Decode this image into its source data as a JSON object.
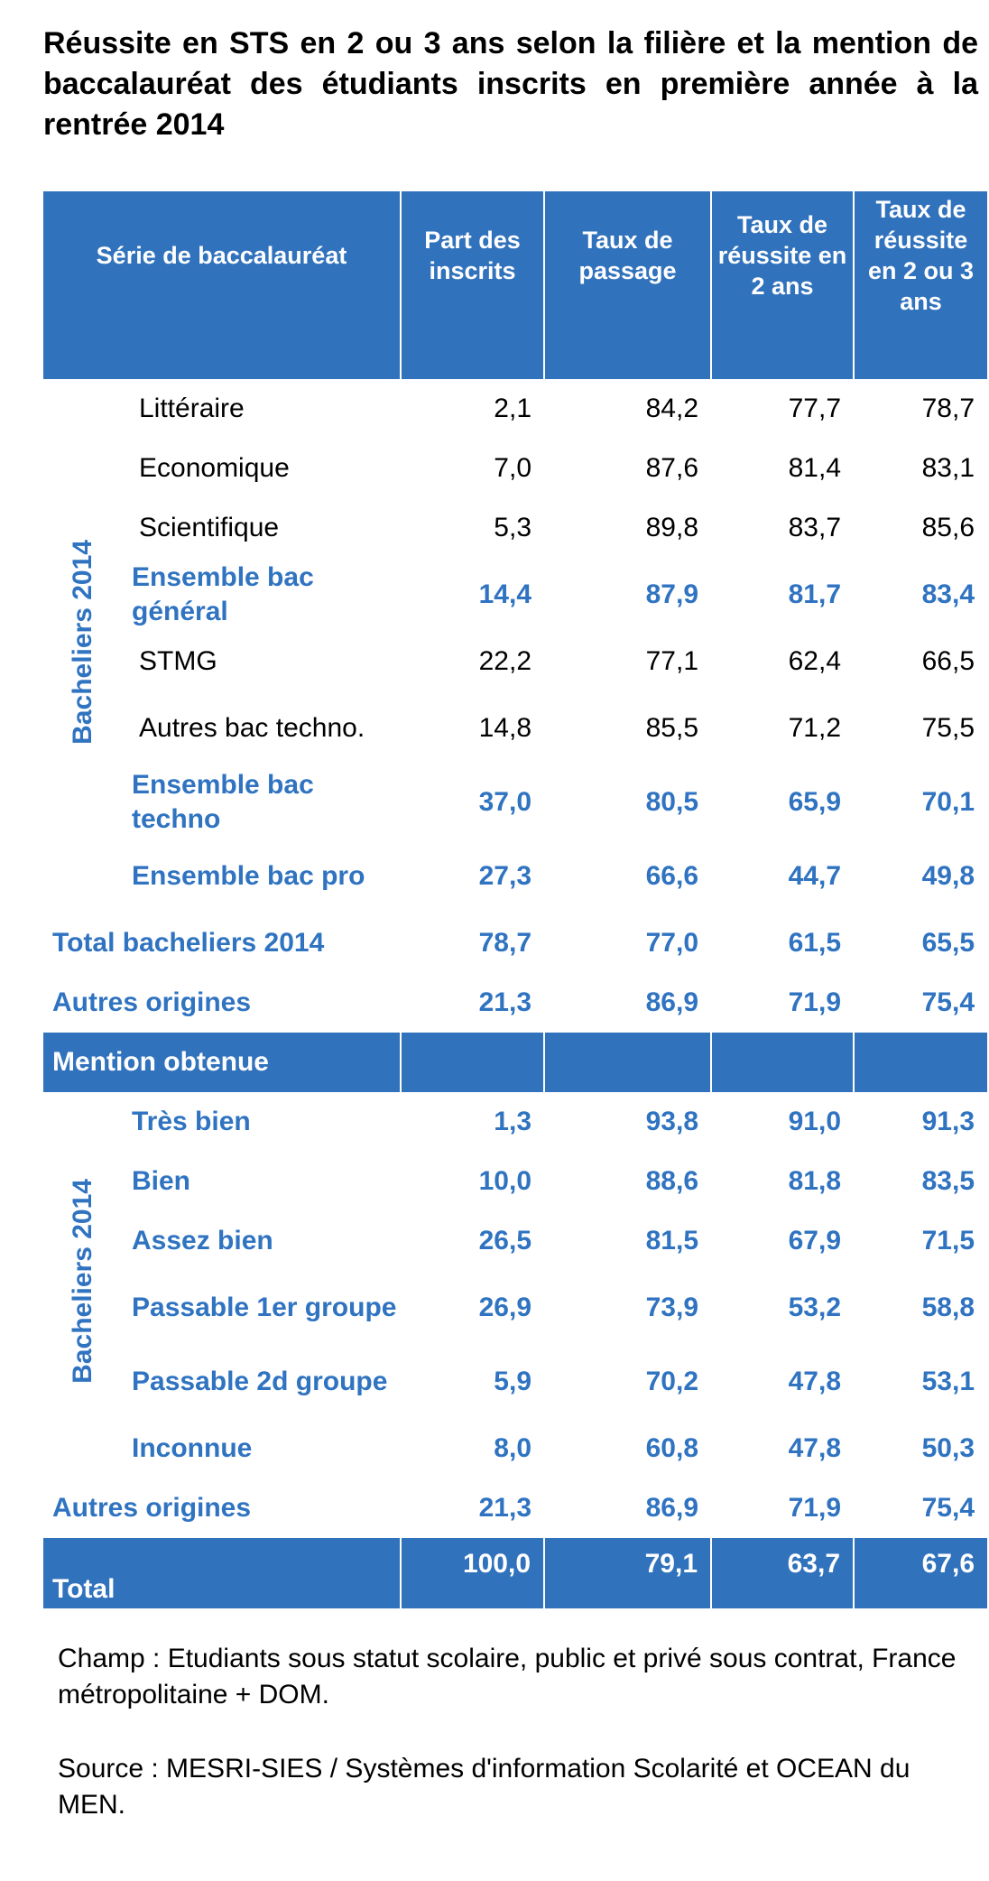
{
  "header": {
    "title": "Réussite en STS en 2 ou 3 ans selon la filière et la mention de baccalauréat des étudiants inscrits en première année à la rentrée 2014"
  },
  "table": {
    "columns": [
      "Série de baccalauréat",
      "Part des inscrits",
      "Taux de passage",
      "Taux de réussite en 2 ans",
      "Taux de réussite en 2 ou 3 ans"
    ],
    "sections": [
      {
        "group": "Bacheliers 2014",
        "rows": [
          [
            "Littéraire",
            "2,1",
            "84,2",
            "77,7",
            "78,7"
          ],
          [
            "Economique",
            "7,0",
            "87,6",
            "81,4",
            "83,1"
          ],
          [
            "Scientifique",
            "5,3",
            "89,8",
            "83,7",
            "85,6"
          ],
          [
            "Ensemble bac général",
            "14,4",
            "87,9",
            "81,7",
            "83,4"
          ],
          [
            "STMG",
            "22,2",
            "77,1",
            "62,4",
            "66,5"
          ],
          [
            "Autres bac techno.",
            "14,8",
            "85,5",
            "71,2",
            "75,5"
          ],
          [
            "Ensemble bac techno",
            "37,0",
            "80,5",
            "65,9",
            "70,1"
          ],
          [
            "Ensemble bac pro",
            "27,3",
            "66,6",
            "44,7",
            "49,8"
          ]
        ],
        "totals": [
          [
            "Total bacheliers 2014",
            "78,7",
            "77,0",
            "61,5",
            "65,5"
          ],
          [
            "Autres origines",
            "21,3",
            "86,9",
            "71,9",
            "75,4"
          ]
        ]
      },
      {
        "heading": "Mention obtenue",
        "group": "Bacheliers 2014",
        "rows": [
          [
            "Très bien",
            "1,3",
            "93,8",
            "91,0",
            "91,3"
          ],
          [
            "Bien",
            "10,0",
            "88,6",
            "81,8",
            "83,5"
          ],
          [
            "Assez bien",
            "26,5",
            "81,5",
            "67,9",
            "71,5"
          ],
          [
            "Passable 1er groupe",
            "26,9",
            "73,9",
            "53,2",
            "58,8"
          ],
          [
            "Passable 2d groupe",
            "5,9",
            "70,2",
            "47,8",
            "53,1"
          ],
          [
            "Inconnue",
            "8,0",
            "60,8",
            "47,8",
            "50,3"
          ]
        ],
        "totals": [
          [
            "Autres origines",
            "21,3",
            "86,9",
            "71,9",
            "75,4"
          ]
        ]
      }
    ],
    "total": [
      "Total",
      "100,0",
      "79,1",
      "63,7",
      "67,6"
    ]
  },
  "notes": [
    "Champ : Etudiants sous statut scolaire, public et privé sous contrat, France métropolitaine + DOM.",
    "Source : MESRI-SIES / Systèmes d'information Scolarité et OCEAN du MEN."
  ]
}
